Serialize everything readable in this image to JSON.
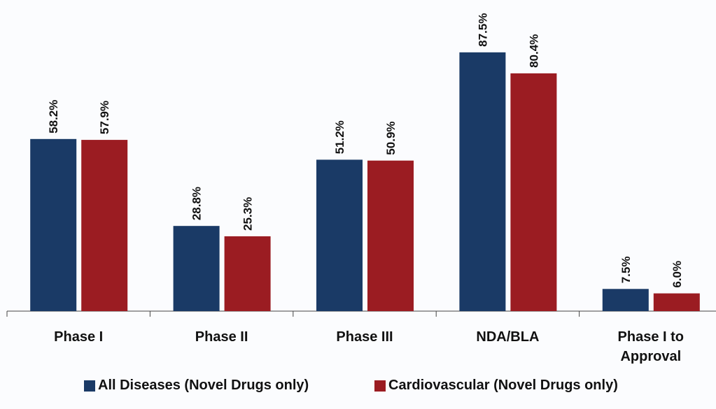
{
  "chart_data": {
    "type": "bar",
    "categories": [
      "Phase I",
      "Phase II",
      "Phase III",
      "NDA/BLA",
      "Phase I to Approval"
    ],
    "series": [
      {
        "name": "All Diseases (Novel Drugs only)",
        "color": "#1a3a66",
        "values": [
          58.2,
          28.8,
          51.2,
          87.5,
          7.5
        ],
        "value_labels": [
          "58.2%",
          "28.8%",
          "51.2%",
          "87.5%",
          "7.5%"
        ]
      },
      {
        "name": "Cardiovascular (Novel Drugs only)",
        "color": "#9b1c22",
        "values": [
          57.9,
          25.3,
          50.9,
          80.4,
          6.0
        ],
        "value_labels": [
          "57.9%",
          "25.3%",
          "50.9%",
          "80.4%",
          "6.0%"
        ]
      }
    ],
    "legend": "bottom"
  }
}
